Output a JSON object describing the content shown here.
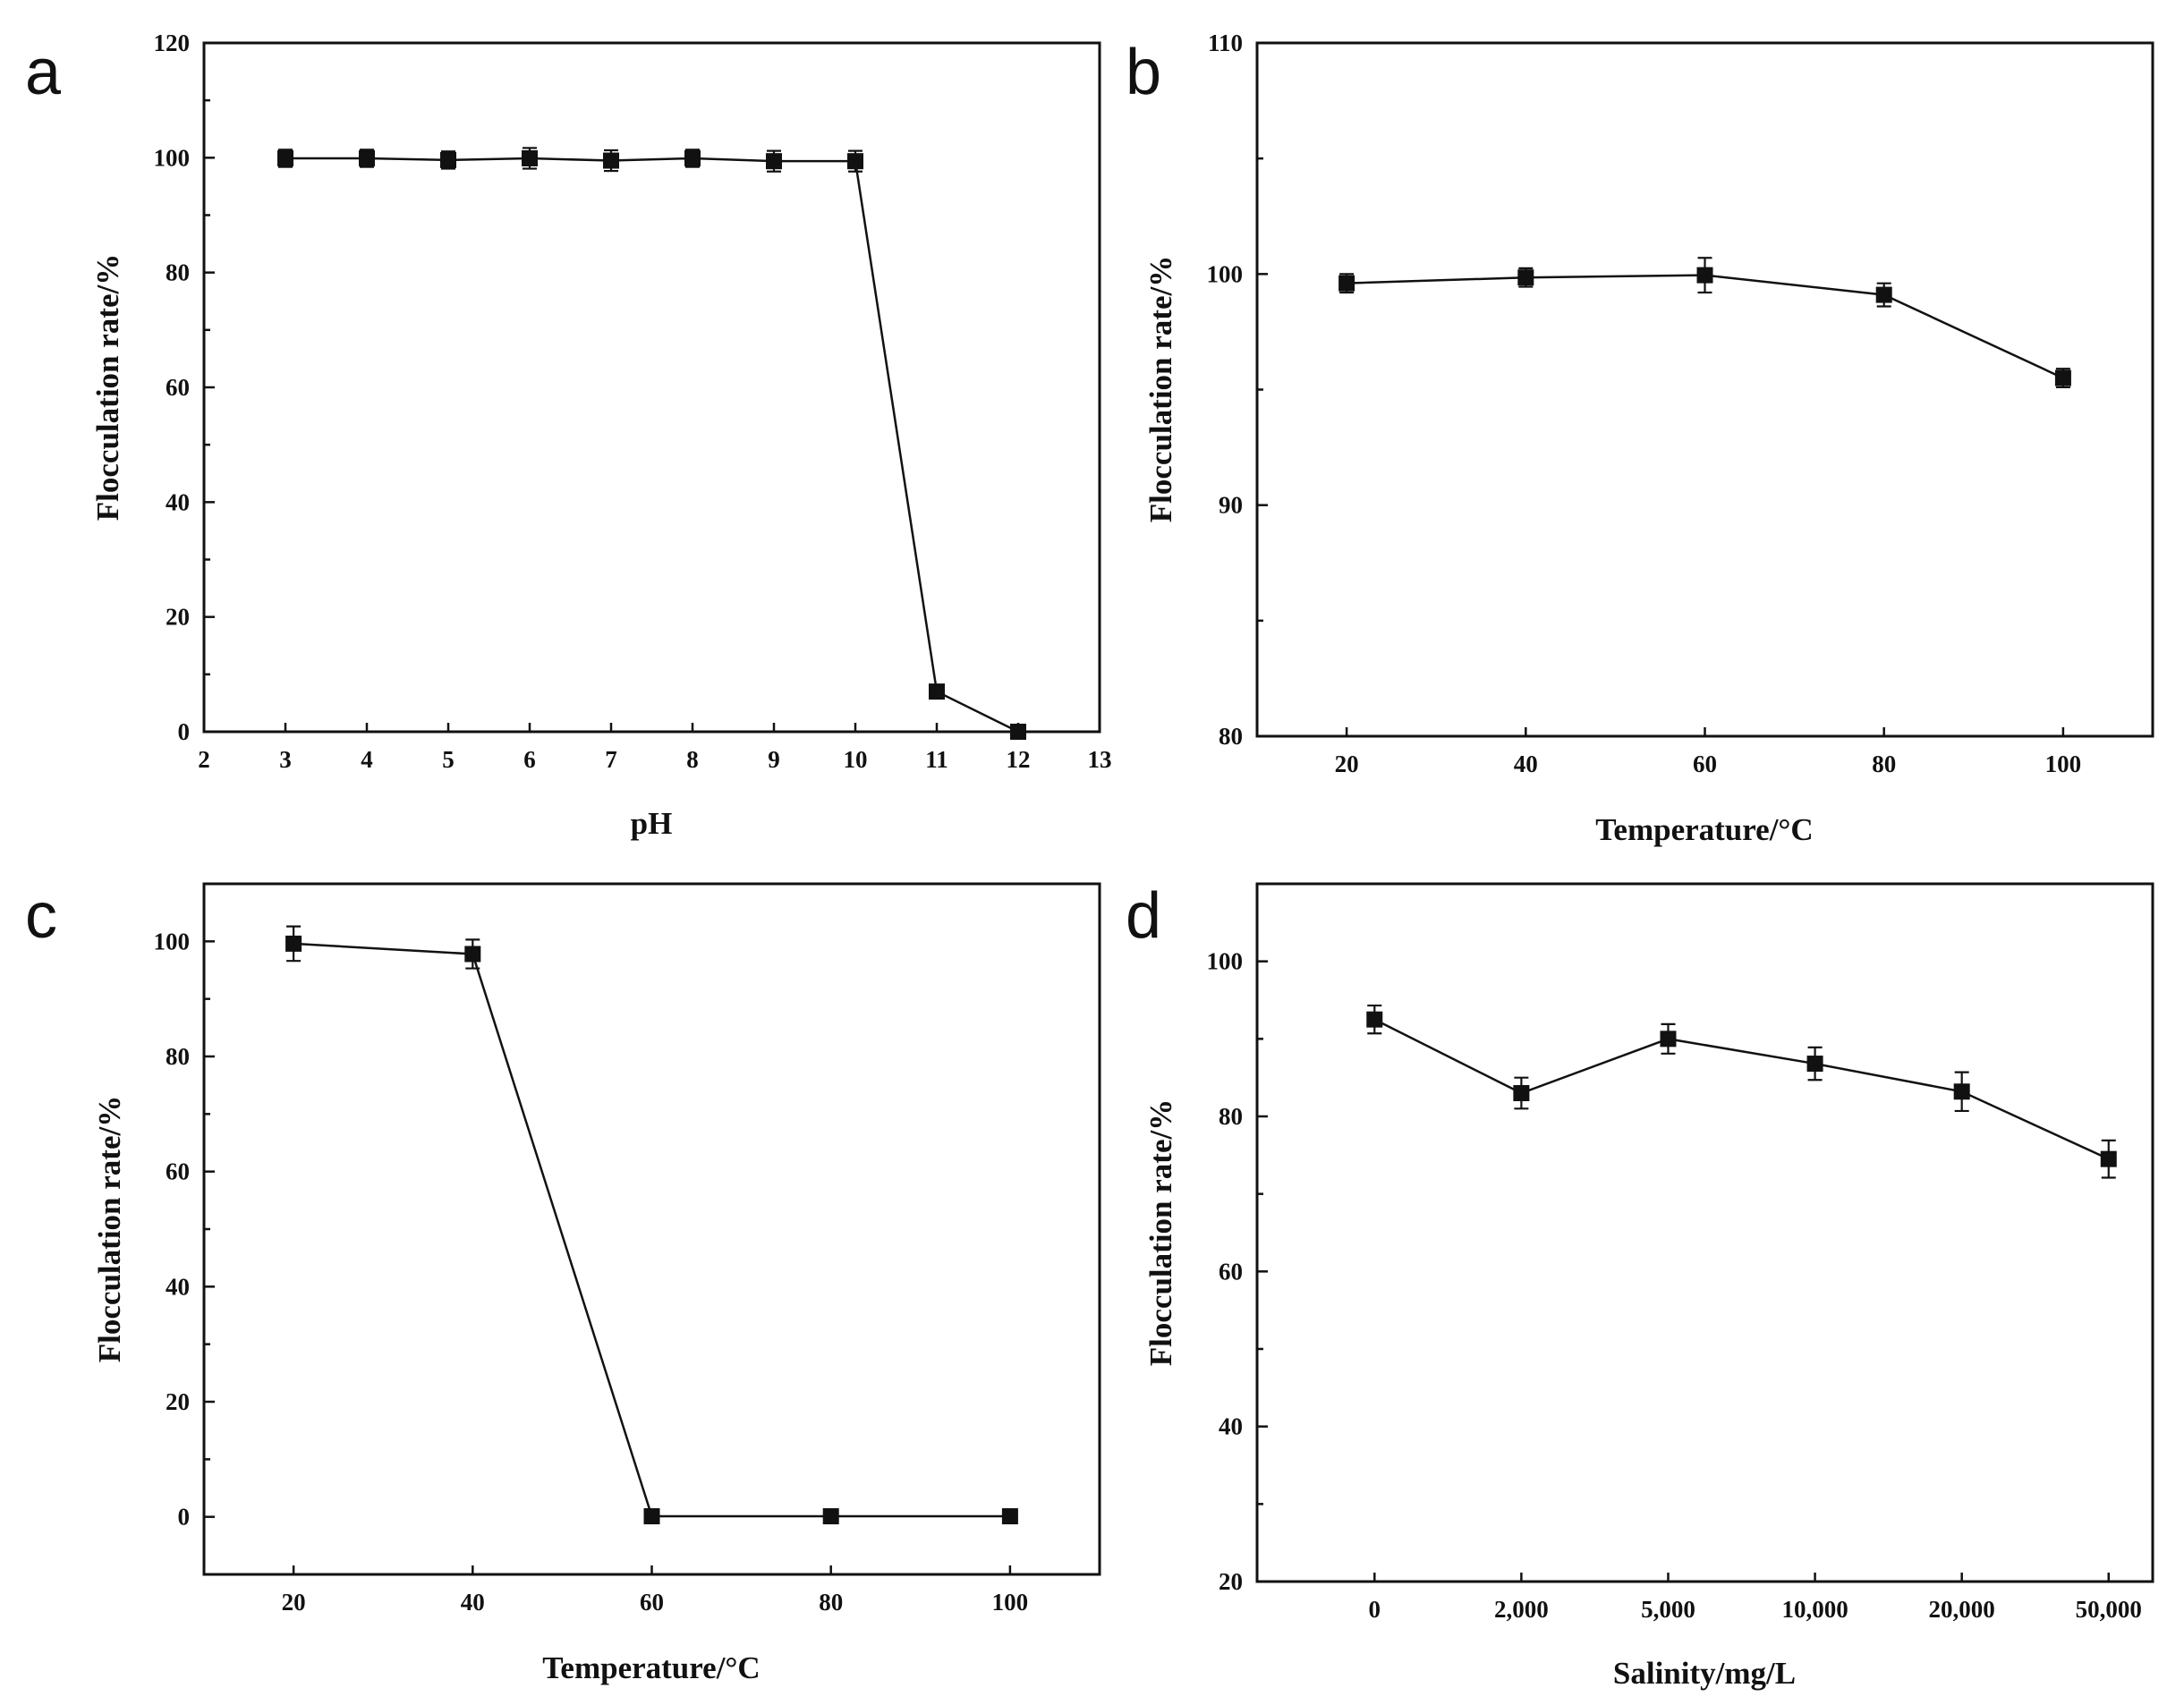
{
  "chart_data": [
    {
      "panel": "a",
      "type": "line",
      "xlabel": "pH",
      "ylabel": "Flocculation rate/%",
      "xlim": [
        2,
        13
      ],
      "ylim": [
        0,
        120
      ],
      "xticks": [
        "2",
        "3",
        "4",
        "5",
        "6",
        "7",
        "8",
        "9",
        "10",
        "11",
        "12",
        "13"
      ],
      "yticks": [
        "0",
        "20",
        "40",
        "60",
        "80",
        "100",
        "120"
      ],
      "x": [
        3,
        4,
        5,
        6,
        7,
        8,
        9,
        10,
        11,
        12
      ],
      "values": [
        99.9,
        99.9,
        99.6,
        99.9,
        99.5,
        99.9,
        99.4,
        99.4,
        7.0,
        0.0
      ],
      "errors": [
        1.5,
        1.5,
        1.5,
        1.8,
        1.8,
        1.5,
        1.8,
        1.8,
        1.0,
        0.5
      ]
    },
    {
      "panel": "b",
      "type": "line",
      "xlabel": "Temperature/°C",
      "ylabel": "Flocculation rate/%",
      "xlim": [
        10,
        110
      ],
      "ylim": [
        80,
        110
      ],
      "xticks": [
        "20",
        "40",
        "60",
        "80",
        "100"
      ],
      "yticks": [
        "80",
        "90",
        "100",
        "110"
      ],
      "x": [
        20,
        40,
        60,
        80,
        100
      ],
      "values": [
        99.6,
        99.85,
        99.95,
        99.1,
        95.5
      ],
      "errors": [
        0.4,
        0.4,
        0.75,
        0.5,
        0.4
      ]
    },
    {
      "panel": "c",
      "type": "line",
      "xlabel": "Temperature/°C",
      "ylabel": "Flocculation rate/%",
      "xlim": [
        10,
        110
      ],
      "ylim": [
        -10,
        110
      ],
      "xticks": [
        "20",
        "40",
        "60",
        "80",
        "100"
      ],
      "yticks": [
        "0",
        "20",
        "40",
        "60",
        "80",
        "100"
      ],
      "x": [
        20,
        40,
        60,
        80,
        100
      ],
      "values": [
        99.6,
        97.8,
        0.1,
        0.1,
        0.1
      ],
      "errors": [
        3.0,
        2.5,
        0.5,
        0.5,
        0.5
      ]
    },
    {
      "panel": "d",
      "type": "line",
      "xlabel": "Salinity/mg/L",
      "ylabel": "Flocculation rate/%",
      "xlim": [
        -0.8,
        5.3
      ],
      "ylim": [
        20,
        110
      ],
      "categories": [
        "0",
        "2,000",
        "5,000",
        "10,000",
        "20,000",
        "50,000"
      ],
      "yticks": [
        "20",
        "40",
        "60",
        "80",
        "100"
      ],
      "x": [
        0,
        1,
        2,
        3,
        4,
        5
      ],
      "values": [
        92.5,
        83.0,
        90.0,
        86.8,
        83.2,
        74.5
      ],
      "errors": [
        1.8,
        2.0,
        1.9,
        2.1,
        2.5,
        2.4
      ]
    }
  ]
}
